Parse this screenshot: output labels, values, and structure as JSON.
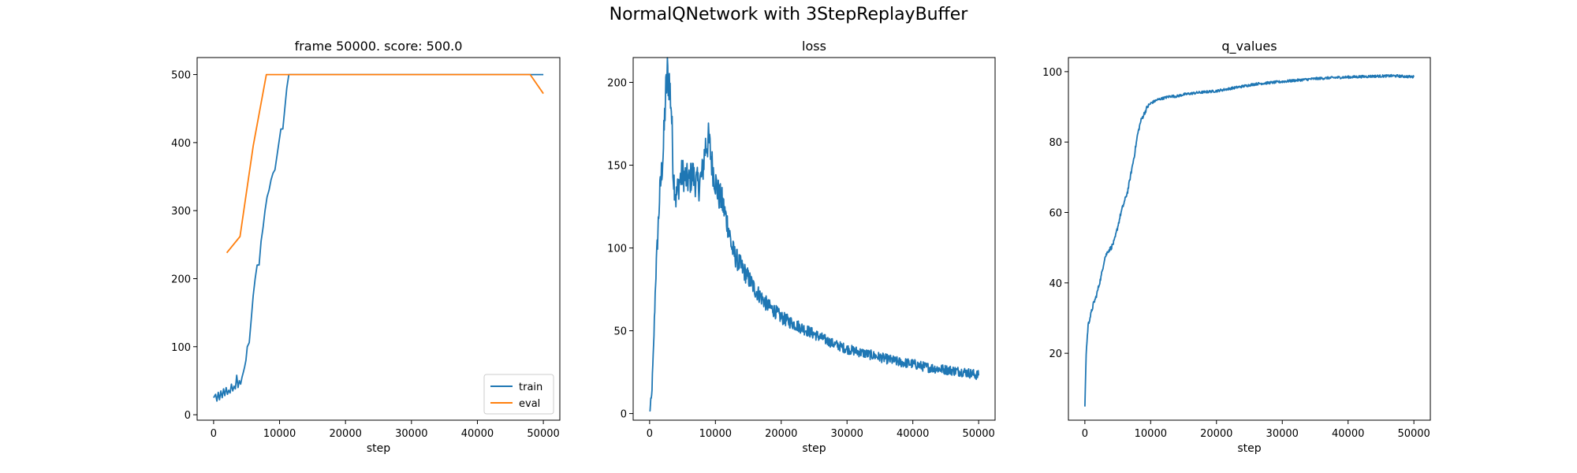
{
  "figure": {
    "title": "NormalQNetwork with 3StepReplayBuffer"
  },
  "colors": {
    "train": "#1f77b4",
    "eval": "#ff7f0e",
    "axis": "#000000"
  },
  "chart_data": [
    {
      "type": "line",
      "title": "frame 50000. score: 500.0",
      "xlabel": "step",
      "ylabel": "",
      "xlim": [
        -2500,
        52500
      ],
      "ylim": [
        -8,
        525
      ],
      "xticks": [
        0,
        10000,
        20000,
        30000,
        40000,
        50000
      ],
      "yticks": [
        0,
        100,
        200,
        300,
        400,
        500
      ],
      "legend": {
        "position": "lower-right",
        "entries": [
          "train",
          "eval"
        ]
      },
      "series": [
        {
          "name": "train",
          "color": "#1f77b4",
          "points": [
            [
              0,
              25
            ],
            [
              300,
              30
            ],
            [
              500,
              20
            ],
            [
              700,
              33
            ],
            [
              900,
              22
            ],
            [
              1100,
              35
            ],
            [
              1300,
              25
            ],
            [
              1500,
              38
            ],
            [
              1700,
              28
            ],
            [
              1900,
              40
            ],
            [
              2100,
              30
            ],
            [
              2300,
              36
            ],
            [
              2500,
              32
            ],
            [
              2700,
              45
            ],
            [
              2900,
              35
            ],
            [
              3100,
              42
            ],
            [
              3300,
              38
            ],
            [
              3500,
              58
            ],
            [
              3700,
              40
            ],
            [
              3900,
              50
            ],
            [
              4100,
              45
            ],
            [
              4300,
              55
            ],
            [
              4500,
              62
            ],
            [
              4700,
              70
            ],
            [
              4900,
              80
            ],
            [
              5100,
              100
            ],
            [
              5400,
              106
            ],
            [
              5700,
              140
            ],
            [
              6000,
              175
            ],
            [
              6300,
              200
            ],
            [
              6600,
              220
            ],
            [
              6900,
              220
            ],
            [
              7200,
              255
            ],
            [
              7500,
              275
            ],
            [
              7800,
              300
            ],
            [
              8100,
              320
            ],
            [
              8400,
              330
            ],
            [
              8700,
              345
            ],
            [
              9000,
              355
            ],
            [
              9300,
              360
            ],
            [
              9600,
              380
            ],
            [
              9900,
              400
            ],
            [
              10200,
              420
            ],
            [
              10500,
              420
            ],
            [
              10800,
              450
            ],
            [
              11100,
              480
            ],
            [
              11400,
              500
            ],
            [
              50000,
              500
            ]
          ]
        },
        {
          "name": "eval",
          "color": "#ff7f0e",
          "points": [
            [
              2000,
              238
            ],
            [
              4000,
              262
            ],
            [
              6000,
              395
            ],
            [
              8000,
              500
            ],
            [
              48000,
              500
            ],
            [
              50000,
              472
            ]
          ]
        }
      ]
    },
    {
      "type": "line",
      "title": "loss",
      "xlabel": "step",
      "ylabel": "",
      "xlim": [
        -2500,
        52500
      ],
      "ylim": [
        -4,
        215
      ],
      "xticks": [
        0,
        10000,
        20000,
        30000,
        40000,
        50000
      ],
      "yticks": [
        0,
        50,
        100,
        150,
        200
      ],
      "series": [
        {
          "name": "loss",
          "color": "#1f77b4",
          "points": [
            [
              0,
              1
            ],
            [
              300,
              10
            ],
            [
              600,
              40
            ],
            [
              900,
              80
            ],
            [
              1200,
              105
            ],
            [
              1500,
              130
            ],
            [
              1800,
              145
            ],
            [
              2100,
              160
            ],
            [
              2400,
              190
            ],
            [
              2700,
              205
            ],
            [
              3000,
              200
            ],
            [
              3300,
              185
            ],
            [
              3600,
              145
            ],
            [
              4000,
              130
            ],
            [
              4500,
              140
            ],
            [
              5000,
              145
            ],
            [
              5500,
              142
            ],
            [
              6000,
              140
            ],
            [
              6500,
              145
            ],
            [
              7000,
              140
            ],
            [
              7500,
              138
            ],
            [
              8000,
              145
            ],
            [
              8500,
              162
            ],
            [
              9000,
              165
            ],
            [
              9500,
              150
            ],
            [
              10000,
              140
            ],
            [
              10500,
              132
            ],
            [
              11000,
              128
            ],
            [
              11500,
              120
            ],
            [
              12000,
              112
            ],
            [
              12500,
              100
            ],
            [
              13000,
              95
            ],
            [
              14000,
              88
            ],
            [
              15000,
              82
            ],
            [
              16000,
              75
            ],
            [
              17000,
              70
            ],
            [
              18000,
              65
            ],
            [
              19000,
              62
            ],
            [
              20000,
              58
            ],
            [
              22000,
              54
            ],
            [
              24000,
              50
            ],
            [
              26000,
              46
            ],
            [
              28000,
              42
            ],
            [
              30000,
              39
            ],
            [
              32000,
              37
            ],
            [
              34000,
              35
            ],
            [
              36000,
              33
            ],
            [
              38000,
              31
            ],
            [
              40000,
              30
            ],
            [
              42000,
              28
            ],
            [
              44000,
              27
            ],
            [
              46000,
              26
            ],
            [
              48000,
              25
            ],
            [
              50000,
              23
            ]
          ]
        }
      ]
    },
    {
      "type": "line",
      "title": "q_values",
      "xlabel": "step",
      "ylabel": "",
      "xlim": [
        -2500,
        52500
      ],
      "ylim": [
        1,
        104
      ],
      "xticks": [
        0,
        10000,
        20000,
        30000,
        40000,
        50000
      ],
      "yticks": [
        20,
        40,
        60,
        80,
        100
      ],
      "series": [
        {
          "name": "q_values",
          "color": "#1f77b4",
          "points": [
            [
              0,
              5
            ],
            [
              200,
              20
            ],
            [
              500,
              28
            ],
            [
              900,
              31
            ],
            [
              1300,
              34
            ],
            [
              1700,
              36
            ],
            [
              2100,
              39
            ],
            [
              2500,
              42
            ],
            [
              3000,
              47
            ],
            [
              3500,
              49
            ],
            [
              4000,
              50
            ],
            [
              4500,
              52
            ],
            [
              5000,
              56
            ],
            [
              5500,
              60
            ],
            [
              6000,
              63
            ],
            [
              6500,
              66
            ],
            [
              7000,
              71
            ],
            [
              7500,
              76
            ],
            [
              8000,
              82
            ],
            [
              8500,
              86
            ],
            [
              9000,
              88
            ],
            [
              9500,
              90
            ],
            [
              10000,
              91
            ],
            [
              11000,
              92
            ],
            [
              12000,
              92.5
            ],
            [
              13000,
              93
            ],
            [
              14000,
              93
            ],
            [
              15000,
              93.5
            ],
            [
              17000,
              94
            ],
            [
              20000,
              94.5
            ],
            [
              23000,
              95.5
            ],
            [
              26000,
              96.5
            ],
            [
              29000,
              97
            ],
            [
              32000,
              97.5
            ],
            [
              35000,
              98
            ],
            [
              38000,
              98.3
            ],
            [
              41000,
              98.5
            ],
            [
              44000,
              98.7
            ],
            [
              47000,
              98.8
            ],
            [
              50000,
              98.5
            ]
          ]
        }
      ]
    }
  ]
}
